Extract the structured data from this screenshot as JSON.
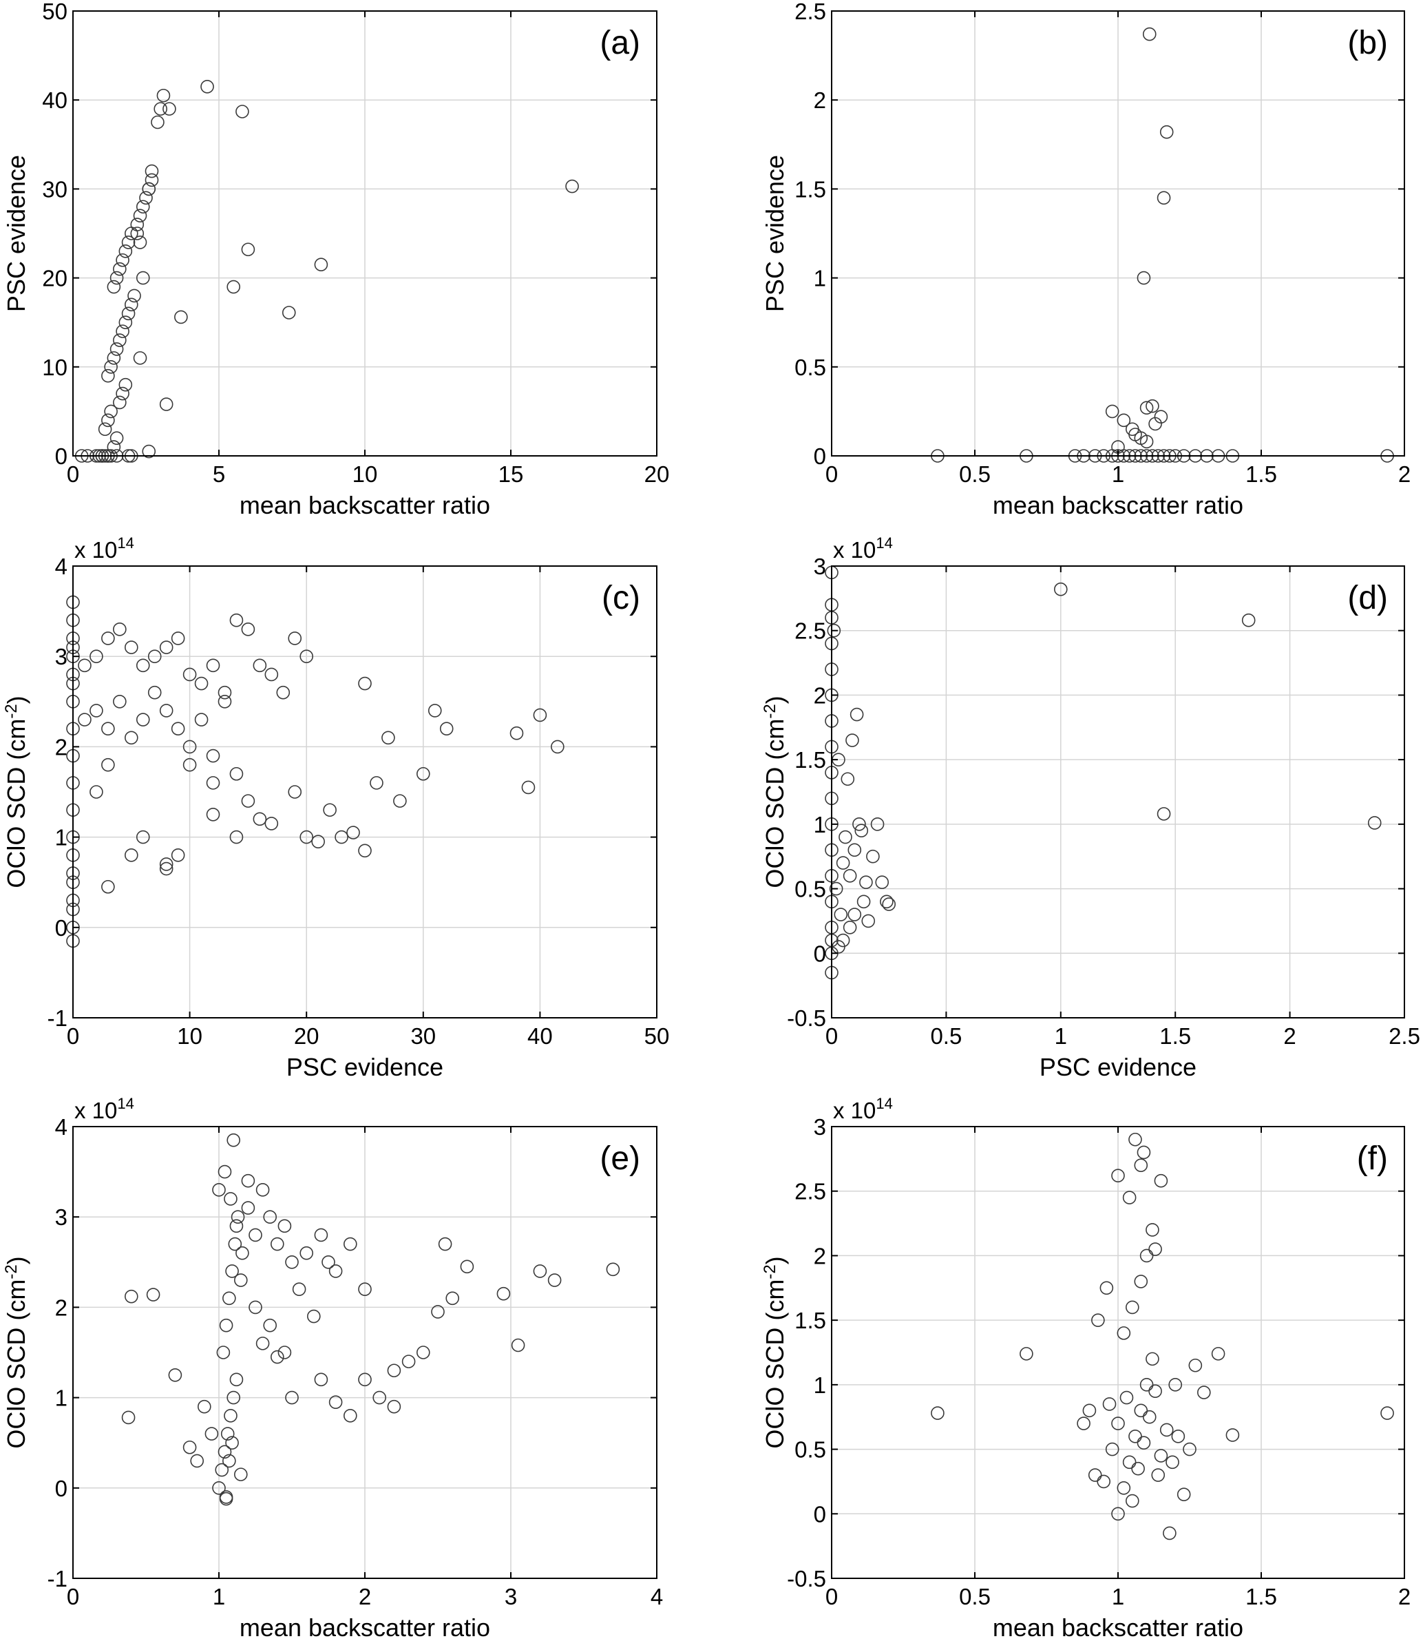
{
  "chart_data": [
    {
      "panel": "(a)",
      "type": "scatter",
      "title": "",
      "xlabel": "mean backscatter ratio",
      "ylabel": "PSC evidence",
      "xlim": [
        0,
        20
      ],
      "ylim": [
        0,
        50
      ],
      "xticks": [
        0,
        5,
        10,
        15,
        20
      ],
      "yticks": [
        0,
        10,
        20,
        30,
        40,
        50
      ],
      "grid": true,
      "multiplier": "",
      "series": [
        {
          "x": [
            1.1,
            1.2,
            1.3,
            1.0,
            0.9,
            1.4,
            1.5,
            1.1,
            1.2,
            1.3,
            1.6,
            1.7,
            1.8,
            1.2,
            1.3,
            1.4,
            1.5,
            1.6,
            1.7,
            1.8,
            1.9,
            2.0,
            2.1,
            1.4,
            1.5,
            1.6,
            1.7,
            1.8,
            1.9,
            2.0,
            2.2,
            2.3,
            2.4,
            2.5,
            2.6,
            2.7,
            2.2,
            2.3,
            2.4,
            2.6,
            2.7,
            2.9,
            3.0,
            3.1,
            3.3,
            4.6,
            5.8,
            3.2,
            6.0,
            5.5,
            3.7,
            7.4,
            8.5,
            17.1,
            2.3,
            1.9,
            2.6,
            0.3,
            0.5,
            0.8,
            1.0,
            1.2,
            1.5,
            2.0
          ],
          "y": [
            0,
            0,
            0,
            0,
            0,
            1,
            2,
            3,
            4,
            5,
            6,
            7,
            8,
            9,
            10,
            11,
            12,
            13,
            14,
            15,
            16,
            17,
            18,
            19,
            20,
            21,
            22,
            23,
            24,
            25,
            26,
            27,
            28,
            29,
            30,
            31,
            25,
            24,
            20,
            30,
            32,
            37.5,
            39,
            40.5,
            39,
            41.5,
            38.7,
            5.8,
            23.2,
            19,
            15.6,
            16.1,
            21.5,
            30.3,
            11,
            0,
            0.5,
            0,
            0,
            0,
            0,
            0,
            0,
            0
          ]
        }
      ]
    },
    {
      "panel": "(b)",
      "type": "scatter",
      "title": "",
      "xlabel": "mean backscatter ratio",
      "ylabel": "PSC evidence",
      "xlim": [
        0,
        2
      ],
      "ylim": [
        0,
        2.5
      ],
      "xticks": [
        0,
        0.5,
        1,
        1.5,
        2
      ],
      "yticks": [
        0,
        0.5,
        1,
        1.5,
        2,
        2.5
      ],
      "grid": true,
      "multiplier": "",
      "series": [
        {
          "x": [
            0.37,
            0.68,
            0.85,
            0.88,
            0.92,
            0.95,
            0.98,
            1.0,
            1.02,
            1.04,
            1.06,
            1.08,
            1.1,
            1.12,
            1.14,
            1.16,
            1.18,
            1.2,
            1.23,
            1.27,
            1.31,
            1.35,
            1.4,
            1.94,
            0.98,
            1.02,
            1.05,
            1.08,
            1.1,
            1.12,
            1.15,
            1.0,
            1.06,
            1.1,
            1.13,
            1.09,
            1.11,
            1.16,
            1.17
          ],
          "y": [
            0,
            0,
            0,
            0,
            0,
            0,
            0,
            0,
            0,
            0,
            0,
            0,
            0,
            0,
            0,
            0,
            0,
            0,
            0,
            0,
            0,
            0,
            0,
            0,
            0.25,
            0.2,
            0.15,
            0.1,
            0.27,
            0.28,
            0.22,
            0.05,
            0.12,
            0.08,
            0.18,
            1.0,
            2.37,
            1.45,
            1.82
          ]
        }
      ]
    },
    {
      "panel": "(c)",
      "type": "scatter",
      "title": "",
      "xlabel": "PSC evidence",
      "ylabel": "OClO SCD (cm-2)",
      "xlim": [
        0,
        50
      ],
      "ylim": [
        -1,
        4
      ],
      "xticks": [
        0,
        10,
        20,
        30,
        40,
        50
      ],
      "yticks": [
        -1,
        0,
        1,
        2,
        3,
        4
      ],
      "grid": true,
      "multiplier": "x 10^14",
      "series": [
        {
          "x": [
            0,
            0,
            0,
            0,
            0,
            0,
            0,
            0,
            0,
            0,
            0,
            0,
            0,
            0,
            0,
            0,
            0,
            0,
            0,
            0,
            1,
            2,
            3,
            4,
            5,
            6,
            7,
            8,
            9,
            10,
            11,
            12,
            13,
            14,
            15,
            16,
            17,
            18,
            1,
            2,
            3,
            4,
            5,
            6,
            7,
            8,
            9,
            10,
            11,
            12,
            13,
            14,
            15,
            3,
            5,
            8,
            10,
            12,
            14,
            16,
            19,
            20,
            21,
            22,
            23,
            24,
            25,
            26,
            27,
            28,
            30,
            31,
            32,
            38,
            39,
            40,
            41.5,
            2,
            3,
            6,
            8,
            9,
            12,
            17,
            19,
            20,
            25
          ],
          "y": [
            -0.15,
            0,
            0.2,
            0.5,
            0.8,
            1.0,
            1.3,
            1.6,
            1.9,
            2.2,
            2.5,
            2.8,
            3.0,
            3.2,
            3.4,
            3.6,
            0.3,
            0.6,
            2.7,
            3.1,
            2.9,
            3.0,
            3.2,
            3.3,
            3.1,
            2.9,
            3.0,
            3.1,
            3.2,
            2.8,
            2.7,
            2.9,
            2.6,
            3.4,
            3.3,
            2.9,
            2.8,
            2.6,
            2.3,
            2.4,
            2.2,
            2.5,
            2.1,
            2.3,
            2.6,
            2.4,
            2.2,
            2.0,
            2.3,
            1.9,
            2.5,
            1.7,
            1.4,
            0.45,
            0.8,
            0.65,
            1.8,
            1.6,
            1.0,
            1.2,
            1.5,
            1.0,
            0.95,
            1.3,
            1.0,
            1.05,
            0.85,
            1.6,
            2.1,
            1.4,
            1.7,
            2.4,
            2.2,
            2.15,
            1.55,
            2.35,
            2.0,
            1.5,
            1.8,
            1.0,
            0.7,
            0.8,
            1.25,
            1.15,
            3.2,
            3.0,
            2.7
          ]
        }
      ]
    },
    {
      "panel": "(d)",
      "type": "scatter",
      "title": "",
      "xlabel": "PSC evidence",
      "ylabel": "OClO SCD (cm-2)",
      "xlim": [
        0,
        2.5
      ],
      "ylim": [
        -0.5,
        3
      ],
      "xticks": [
        0,
        0.5,
        1,
        1.5,
        2,
        2.5
      ],
      "yticks": [
        -0.5,
        0,
        0.5,
        1,
        1.5,
        2,
        2.5,
        3
      ],
      "grid": true,
      "multiplier": "x 10^14",
      "series": [
        {
          "x": [
            0,
            0,
            0,
            0,
            0,
            0,
            0,
            0,
            0,
            0,
            0,
            0,
            0,
            0,
            0,
            0,
            0,
            0,
            0.02,
            0.04,
            0.05,
            0.06,
            0.08,
            0.1,
            0.12,
            0.14,
            0.15,
            0.18,
            0.2,
            0.22,
            0.24,
            0.25,
            0.03,
            0.07,
            0.09,
            0.11,
            0.13,
            0.05,
            0.08,
            0.1,
            0.16,
            1.0,
            1.45,
            1.82,
            2.37,
            0.01,
            0.03
          ],
          "y": [
            -0.15,
            0,
            0.2,
            0.4,
            0.6,
            0.8,
            1.0,
            1.2,
            1.4,
            1.6,
            1.8,
            2.0,
            2.2,
            2.4,
            2.6,
            2.7,
            2.95,
            0.1,
            0.5,
            0.3,
            0.7,
            0.9,
            0.6,
            0.8,
            1.0,
            0.4,
            0.55,
            0.75,
            1.0,
            0.55,
            0.4,
            0.38,
            1.5,
            1.35,
            1.65,
            1.85,
            0.95,
            0.1,
            0.2,
            0.3,
            0.25,
            2.82,
            1.08,
            2.58,
            1.01,
            2.5,
            0.05
          ]
        }
      ]
    },
    {
      "panel": "(e)",
      "type": "scatter",
      "title": "",
      "xlabel": "mean backscatter ratio",
      "ylabel": "OClO SCD (cm-2)",
      "xlim": [
        0,
        4
      ],
      "ylim": [
        -1,
        4
      ],
      "xticks": [
        0,
        1,
        2,
        3,
        4
      ],
      "yticks": [
        -1,
        0,
        1,
        2,
        3,
        4
      ],
      "grid": true,
      "multiplier": "x 10^14",
      "series": [
        {
          "x": [
            1.0,
            1.02,
            1.04,
            1.06,
            1.08,
            1.1,
            1.12,
            1.05,
            1.07,
            1.09,
            1.03,
            1.05,
            1.07,
            1.09,
            1.11,
            1.13,
            1.0,
            1.04,
            1.08,
            1.12,
            1.16,
            1.2,
            1.25,
            1.3,
            1.35,
            1.4,
            1.45,
            1.5,
            1.6,
            1.7,
            1.8,
            1.9,
            1.15,
            1.25,
            1.35,
            1.45,
            1.55,
            1.65,
            1.75,
            0.38,
            0.4,
            0.55,
            0.7,
            0.8,
            0.85,
            0.9,
            0.95,
            1.9,
            2.0,
            2.1,
            2.2,
            2.3,
            2.4,
            2.5,
            2.55,
            2.6,
            2.7,
            2.95,
            3.05,
            3.2,
            3.3,
            3.7,
            2.0,
            2.2,
            1.5,
            1.7,
            1.8,
            1.3,
            1.4,
            1.2,
            1.1,
            1.15,
            1.05
          ],
          "y": [
            0,
            0.2,
            0.4,
            0.6,
            0.8,
            1.0,
            1.2,
            -0.1,
            0.3,
            0.5,
            1.5,
            1.8,
            2.1,
            2.4,
            2.7,
            3.0,
            3.3,
            3.5,
            3.2,
            2.9,
            2.6,
            3.1,
            2.8,
            3.3,
            3.0,
            2.7,
            2.9,
            2.5,
            2.6,
            2.8,
            2.4,
            2.7,
            2.3,
            2.0,
            1.8,
            1.5,
            2.2,
            1.9,
            2.5,
            0.78,
            2.12,
            2.14,
            1.25,
            0.45,
            0.3,
            0.9,
            0.6,
            0.8,
            1.2,
            1.0,
            0.9,
            1.4,
            1.5,
            1.95,
            2.7,
            2.1,
            2.45,
            2.15,
            1.58,
            2.4,
            2.3,
            2.42,
            2.2,
            1.3,
            1.0,
            1.2,
            0.95,
            1.6,
            1.45,
            3.4,
            3.85,
            0.15,
            -0.12
          ]
        }
      ]
    },
    {
      "panel": "(f)",
      "type": "scatter",
      "title": "",
      "xlabel": "mean backscatter ratio",
      "ylabel": "OClO SCD (cm-2)",
      "xlim": [
        0,
        2
      ],
      "ylim": [
        -0.5,
        3
      ],
      "xticks": [
        0,
        0.5,
        1,
        1.5,
        2
      ],
      "yticks": [
        -0.5,
        0,
        0.5,
        1,
        1.5,
        2,
        2.5,
        3
      ],
      "grid": true,
      "multiplier": "x 10^14",
      "series": [
        {
          "x": [
            1.0,
            1.02,
            1.04,
            1.06,
            1.08,
            1.1,
            1.12,
            1.14,
            0.98,
            1.0,
            1.03,
            1.05,
            1.07,
            1.09,
            1.11,
            1.13,
            1.15,
            1.17,
            0.95,
            0.97,
            1.19,
            1.21,
            1.23,
            1.25,
            0.9,
            0.92,
            0.88,
            1.27,
            1.3,
            1.35,
            1.4,
            0.37,
            0.68,
            1.94,
            1.02,
            1.05,
            1.08,
            1.1,
            1.12,
            1.06,
            1.09,
            1.15,
            1.0,
            1.04,
            1.08,
            1.13,
            1.2,
            0.93,
            0.96,
            1.18
          ],
          "y": [
            0,
            0.2,
            0.4,
            0.6,
            0.8,
            1.0,
            1.2,
            0.3,
            0.5,
            0.7,
            0.9,
            0.1,
            0.35,
            0.55,
            0.75,
            0.95,
            0.45,
            0.65,
            0.25,
            0.85,
            0.4,
            0.6,
            0.15,
            0.5,
            0.8,
            0.3,
            0.7,
            1.15,
            0.94,
            1.24,
            0.61,
            0.78,
            1.24,
            0.78,
            1.4,
            1.6,
            1.8,
            2.0,
            2.2,
            2.9,
            2.8,
            2.58,
            2.62,
            2.45,
            2.7,
            2.05,
            1.0,
            1.5,
            1.75,
            -0.15
          ]
        }
      ]
    }
  ]
}
